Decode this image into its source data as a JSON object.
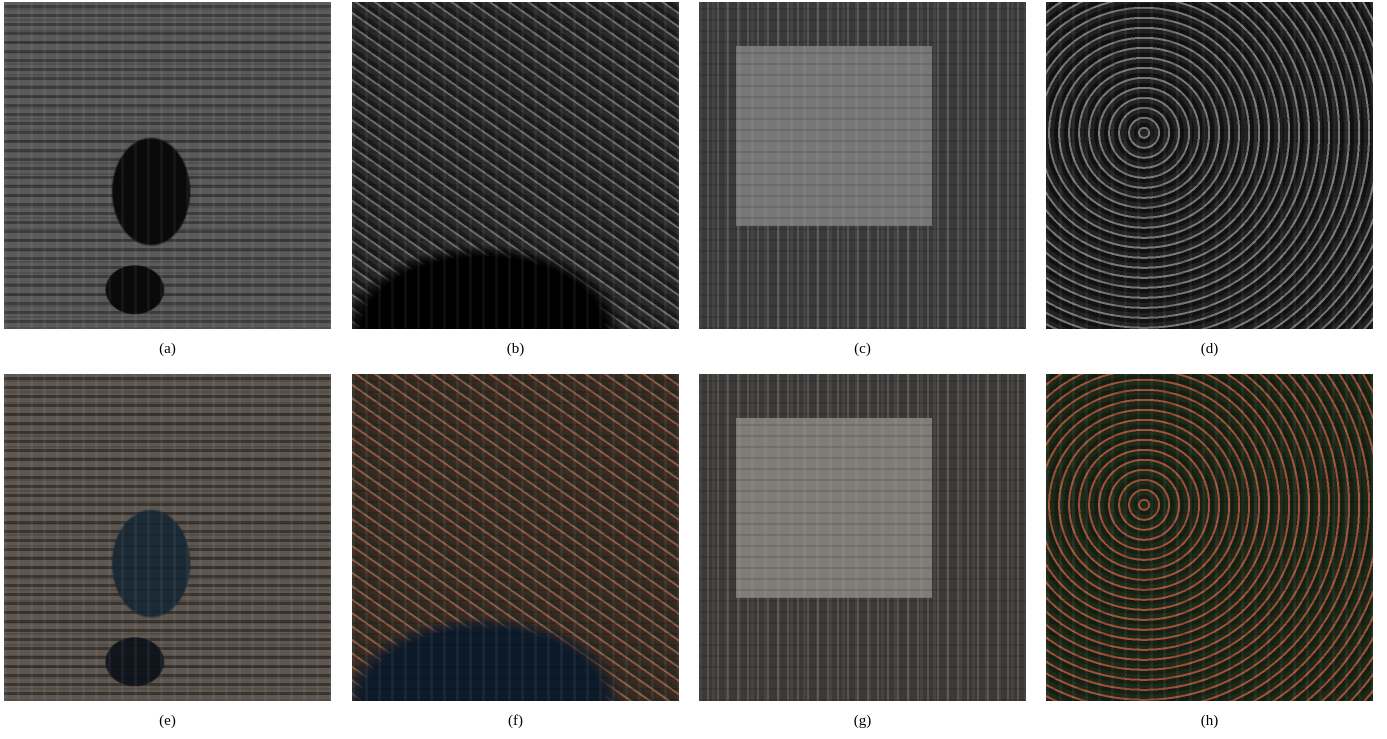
{
  "figure": {
    "panels": [
      {
        "label": "(a)"
      },
      {
        "label": "(b)"
      },
      {
        "label": "(c)"
      },
      {
        "label": "(d)"
      },
      {
        "label": "(e)"
      },
      {
        "label": "(f)"
      },
      {
        "label": "(g)"
      },
      {
        "label": "(h)"
      }
    ]
  }
}
